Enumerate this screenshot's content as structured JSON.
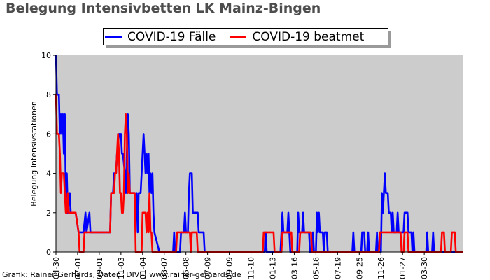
{
  "title": "Belegung Intensivbetten LK Mainz-Bingen",
  "credit": "Grafik: Rainer Gerhards, Daten: DIVI | www.rainer-gerhards.de",
  "chart_data": {
    "type": "line",
    "title": "Belegung Intensivbetten LK Mainz-Bingen",
    "xlabel": "",
    "ylabel": "Belegung Intensivstationen",
    "ylim": [
      0,
      10
    ],
    "yticks": [
      0,
      2,
      4,
      6,
      8,
      10
    ],
    "xlim": [
      0,
      413
    ],
    "xticks": [
      {
        "x": 0,
        "label": "04-30"
      },
      {
        "x": 22,
        "label": "07-01"
      },
      {
        "x": 44,
        "label": "09-01"
      },
      {
        "x": 66,
        "label": "11-03"
      },
      {
        "x": 88,
        "label": "01-04"
      },
      {
        "x": 110,
        "label": "03-07"
      },
      {
        "x": 132,
        "label": "05-08"
      },
      {
        "x": 154,
        "label": "07-09"
      },
      {
        "x": 176,
        "label": "09-09"
      },
      {
        "x": 198,
        "label": "11-10"
      },
      {
        "x": 220,
        "label": "01-13"
      },
      {
        "x": 242,
        "label": "03-16"
      },
      {
        "x": 264,
        "label": "05-18"
      },
      {
        "x": 286,
        "label": "07-19"
      },
      {
        "x": 308,
        "label": "09-25"
      },
      {
        "x": 330,
        "label": "11-26"
      },
      {
        "x": 352,
        "label": "01-27"
      },
      {
        "x": 374,
        "label": "03-30"
      }
    ],
    "grid": false,
    "background": "#cccccc",
    "legend_position": "top",
    "series": [
      {
        "name": "COVID-19 Fälle",
        "color": "#0000ff",
        "points": [
          [
            0,
            10
          ],
          [
            1,
            8
          ],
          [
            3,
            8
          ],
          [
            4,
            6
          ],
          [
            5,
            7
          ],
          [
            6,
            6
          ],
          [
            7,
            7
          ],
          [
            8,
            5
          ],
          [
            9,
            7
          ],
          [
            10,
            3
          ],
          [
            11,
            4
          ],
          [
            12,
            2
          ],
          [
            14,
            3
          ],
          [
            15,
            2
          ],
          [
            20,
            2
          ],
          [
            23,
            1
          ],
          [
            28,
            1
          ],
          [
            30,
            2
          ],
          [
            31,
            1
          ],
          [
            34,
            2
          ],
          [
            35,
            1
          ],
          [
            55,
            1
          ],
          [
            56,
            3
          ],
          [
            58,
            3
          ],
          [
            59,
            4
          ],
          [
            61,
            4
          ],
          [
            62,
            5
          ],
          [
            64,
            6
          ],
          [
            66,
            6
          ],
          [
            67,
            5
          ],
          [
            68,
            5
          ],
          [
            70,
            4
          ],
          [
            71,
            3
          ],
          [
            72,
            5
          ],
          [
            73,
            7
          ],
          [
            74,
            6
          ],
          [
            75,
            3
          ],
          [
            80,
            3
          ],
          [
            81,
            2
          ],
          [
            82,
            3
          ],
          [
            83,
            1
          ],
          [
            84,
            3
          ],
          [
            86,
            3
          ],
          [
            87,
            4
          ],
          [
            88,
            5
          ],
          [
            89,
            6
          ],
          [
            90,
            5
          ],
          [
            91,
            4
          ],
          [
            92,
            5
          ],
          [
            93,
            4
          ],
          [
            94,
            5
          ],
          [
            95,
            3
          ],
          [
            96,
            4
          ],
          [
            97,
            3
          ],
          [
            98,
            4
          ],
          [
            99,
            2
          ],
          [
            100,
            1
          ],
          [
            105,
            0
          ],
          [
            119,
            0
          ],
          [
            120,
            1
          ],
          [
            121,
            0
          ],
          [
            126,
            0
          ],
          [
            127,
            1
          ],
          [
            130,
            1
          ],
          [
            131,
            2
          ],
          [
            132,
            1
          ],
          [
            134,
            1
          ],
          [
            135,
            3
          ],
          [
            136,
            4
          ],
          [
            138,
            4
          ],
          [
            139,
            2
          ],
          [
            144,
            2
          ],
          [
            145,
            1
          ],
          [
            150,
            1
          ],
          [
            151,
            0
          ],
          [
            212,
            0
          ],
          [
            213,
            1
          ],
          [
            214,
            0
          ],
          [
            228,
            0
          ],
          [
            229,
            1
          ],
          [
            230,
            2
          ],
          [
            231,
            1
          ],
          [
            235,
            1
          ],
          [
            236,
            2
          ],
          [
            237,
            1
          ],
          [
            238,
            0
          ],
          [
            245,
            0
          ],
          [
            246,
            2
          ],
          [
            247,
            1
          ],
          [
            250,
            1
          ],
          [
            251,
            2
          ],
          [
            252,
            1
          ],
          [
            257,
            1
          ],
          [
            258,
            0
          ],
          [
            260,
            0
          ],
          [
            261,
            1
          ],
          [
            262,
            0
          ],
          [
            264,
            0
          ],
          [
            265,
            2
          ],
          [
            266,
            1
          ],
          [
            267,
            2
          ],
          [
            268,
            1
          ],
          [
            271,
            1
          ],
          [
            272,
            0
          ],
          [
            273,
            1
          ],
          [
            275,
            1
          ],
          [
            276,
            0
          ],
          [
            301,
            0
          ],
          [
            302,
            1
          ],
          [
            303,
            0
          ],
          [
            310,
            0
          ],
          [
            311,
            1
          ],
          [
            313,
            1
          ],
          [
            314,
            0
          ],
          [
            316,
            0
          ],
          [
            317,
            1
          ],
          [
            318,
            0
          ],
          [
            325,
            0
          ],
          [
            326,
            1
          ],
          [
            327,
            0
          ],
          [
            330,
            0
          ],
          [
            331,
            3
          ],
          [
            332,
            2
          ],
          [
            333,
            3
          ],
          [
            334,
            4
          ],
          [
            335,
            3
          ],
          [
            337,
            3
          ],
          [
            338,
            2
          ],
          [
            340,
            2
          ],
          [
            341,
            1
          ],
          [
            342,
            2
          ],
          [
            343,
            1
          ],
          [
            346,
            1
          ],
          [
            347,
            2
          ],
          [
            348,
            1
          ],
          [
            353,
            1
          ],
          [
            354,
            2
          ],
          [
            357,
            2
          ],
          [
            358,
            1
          ],
          [
            361,
            1
          ],
          [
            362,
            0
          ],
          [
            363,
            1
          ],
          [
            364,
            0
          ],
          [
            376,
            0
          ],
          [
            377,
            1
          ],
          [
            378,
            0
          ],
          [
            382,
            0
          ],
          [
            383,
            1
          ],
          [
            384,
            0
          ],
          [
            413,
            0
          ]
        ]
      },
      {
        "name": "COVID-19 beatmet",
        "color": "#ff0000",
        "points": [
          [
            0,
            8
          ],
          [
            1,
            6
          ],
          [
            3,
            6
          ],
          [
            4,
            5
          ],
          [
            5,
            3
          ],
          [
            6,
            4
          ],
          [
            7,
            4
          ],
          [
            8,
            4
          ],
          [
            9,
            3
          ],
          [
            10,
            2
          ],
          [
            11,
            2
          ],
          [
            12,
            3
          ],
          [
            13,
            2
          ],
          [
            20,
            2
          ],
          [
            23,
            1
          ],
          [
            24,
            0
          ],
          [
            28,
            0
          ],
          [
            29,
            1
          ],
          [
            55,
            1
          ],
          [
            56,
            3
          ],
          [
            59,
            3
          ],
          [
            60,
            4
          ],
          [
            61,
            4
          ],
          [
            62,
            5
          ],
          [
            63,
            6
          ],
          [
            64,
            5
          ],
          [
            65,
            3
          ],
          [
            66,
            3
          ],
          [
            67,
            2
          ],
          [
            68,
            2
          ],
          [
            69,
            3
          ],
          [
            70,
            6
          ],
          [
            71,
            7
          ],
          [
            72,
            6
          ],
          [
            73,
            3
          ],
          [
            74,
            4
          ],
          [
            75,
            3
          ],
          [
            80,
            3
          ],
          [
            81,
            0
          ],
          [
            87,
            0
          ],
          [
            88,
            2
          ],
          [
            91,
            2
          ],
          [
            92,
            1
          ],
          [
            93,
            2
          ],
          [
            94,
            1
          ],
          [
            95,
            3
          ],
          [
            96,
            1
          ],
          [
            97,
            1
          ],
          [
            98,
            0
          ],
          [
            122,
            0
          ],
          [
            123,
            1
          ],
          [
            136,
            1
          ],
          [
            137,
            0
          ],
          [
            138,
            1
          ],
          [
            143,
            1
          ],
          [
            144,
            0
          ],
          [
            210,
            0
          ],
          [
            211,
            1
          ],
          [
            221,
            1
          ],
          [
            222,
            0
          ],
          [
            229,
            0
          ],
          [
            230,
            1
          ],
          [
            239,
            1
          ],
          [
            240,
            0
          ],
          [
            247,
            0
          ],
          [
            248,
            1
          ],
          [
            259,
            1
          ],
          [
            260,
            0
          ],
          [
            328,
            0
          ],
          [
            329,
            1
          ],
          [
            350,
            1
          ],
          [
            351,
            0
          ],
          [
            353,
            0
          ],
          [
            354,
            1
          ],
          [
            357,
            1
          ],
          [
            358,
            0
          ],
          [
            391,
            0
          ],
          [
            392,
            1
          ],
          [
            394,
            1
          ],
          [
            395,
            0
          ],
          [
            401,
            0
          ],
          [
            402,
            1
          ],
          [
            405,
            1
          ],
          [
            406,
            0
          ],
          [
            413,
            0
          ]
        ]
      }
    ]
  }
}
